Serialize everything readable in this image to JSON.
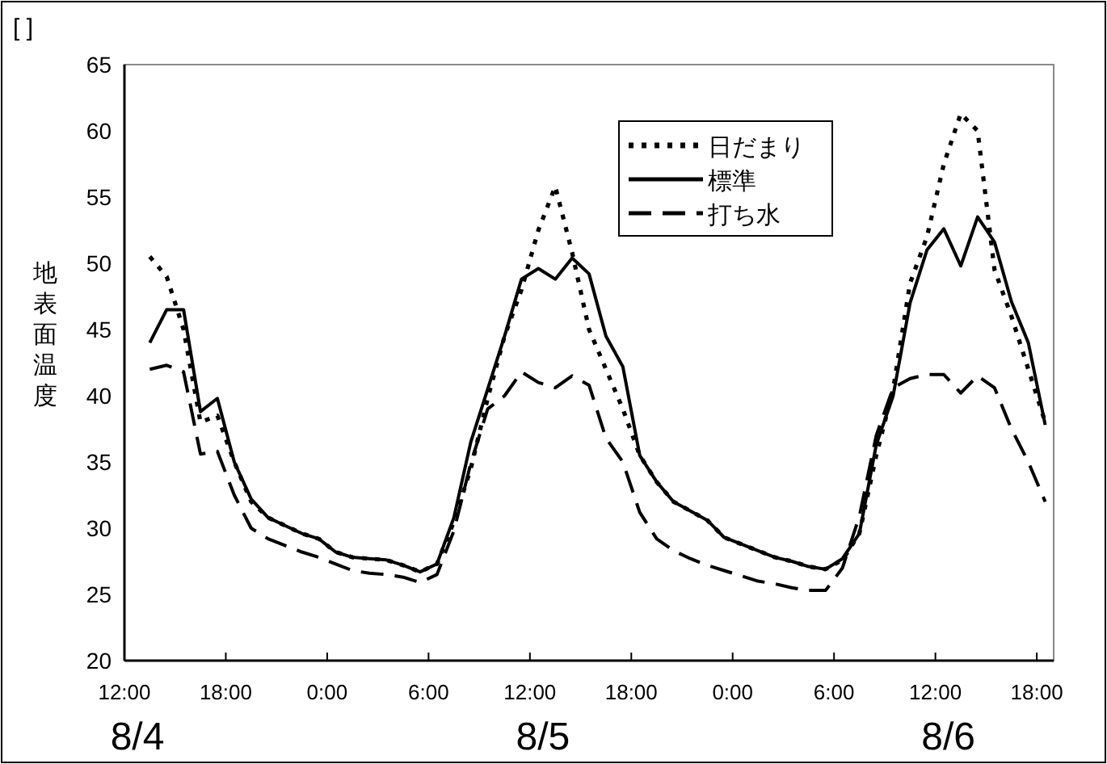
{
  "chart_data": {
    "type": "line",
    "ylabel": "地表面温度",
    "annotations": [
      "[ ]",
      "8/4",
      "8/5",
      "8/6"
    ],
    "x": [
      "--08-04T13:30",
      "--08-04T14:30",
      "--08-04T15:30",
      "--08-04T16:30",
      "--08-04T17:30",
      "--08-04T18:30",
      "--08-04T19:30",
      "--08-04T20:30",
      "--08-04T21:30",
      "--08-04T22:30",
      "--08-04T23:30",
      "--08-05T00:30",
      "--08-05T01:30",
      "--08-05T02:30",
      "--08-05T03:30",
      "--08-05T04:30",
      "--08-05T05:30",
      "--08-05T06:30",
      "--08-05T07:30",
      "--08-05T08:30",
      "--08-05T09:30",
      "--08-05T10:30",
      "--08-05T11:30",
      "--08-05T12:30",
      "--08-05T13:30",
      "--08-05T14:30",
      "--08-05T15:30",
      "--08-05T16:30",
      "--08-05T17:30",
      "--08-05T18:30",
      "--08-05T19:30",
      "--08-05T20:30",
      "--08-05T21:30",
      "--08-05T22:30",
      "--08-05T23:30",
      "--08-06T00:30",
      "--08-06T01:30",
      "--08-06T02:30",
      "--08-06T03:30",
      "--08-06T04:30",
      "--08-06T05:30",
      "--08-06T06:30",
      "--08-06T07:30",
      "--08-06T08:30",
      "--08-06T09:30",
      "--08-06T10:30",
      "--08-06T11:30",
      "--08-06T12:30",
      "--08-06T13:30",
      "--08-06T14:30",
      "--08-06T15:30",
      "--08-06T16:30",
      "--08-06T17:30",
      "--08-06T18:30"
    ],
    "series": [
      {
        "name": "日だまり",
        "color": "#000000",
        "line_style": "dotted",
        "values": [
          50.5,
          49.0,
          45.0,
          38.0,
          38.5,
          35.0,
          32.0,
          30.8,
          30.2,
          29.6,
          29.2,
          28.2,
          27.8,
          27.7,
          27.6,
          27.2,
          26.7,
          27.3,
          30.5,
          34.5,
          39.8,
          44.5,
          48.0,
          52.5,
          55.8,
          50.8,
          45.0,
          42.0,
          39.0,
          35.5,
          33.5,
          32.0,
          31.3,
          30.6,
          29.3,
          28.8,
          28.3,
          27.8,
          27.5,
          27.1,
          26.9,
          27.6,
          29.6,
          35.5,
          40.5,
          48.5,
          52.0,
          57.5,
          61.3,
          60.0,
          49.5,
          46.0,
          42.0,
          38.0
        ]
      },
      {
        "name": "標準",
        "color": "#000000",
        "line_style": "solid",
        "values": [
          44.0,
          46.5,
          46.5,
          38.8,
          39.8,
          35.0,
          32.2,
          30.8,
          30.2,
          29.6,
          29.2,
          28.2,
          27.8,
          27.7,
          27.6,
          27.2,
          26.7,
          27.3,
          30.8,
          36.5,
          40.5,
          44.5,
          48.8,
          49.6,
          48.8,
          50.4,
          49.2,
          44.5,
          42.2,
          35.5,
          33.5,
          32.0,
          31.3,
          30.6,
          29.3,
          28.8,
          28.3,
          27.8,
          27.5,
          27.1,
          26.9,
          27.7,
          29.6,
          36.3,
          40.0,
          47.0,
          51.0,
          52.6,
          49.8,
          53.5,
          51.6,
          47.1,
          44.0,
          37.8
        ]
      },
      {
        "name": "打ち水",
        "color": "#000000",
        "line_style": "dashed",
        "values": [
          42.0,
          42.3,
          41.8,
          35.6,
          35.8,
          32.5,
          30.0,
          29.2,
          28.7,
          28.2,
          27.8,
          27.3,
          26.8,
          26.6,
          26.5,
          26.3,
          25.9,
          26.5,
          29.8,
          34.9,
          39.0,
          40.0,
          41.8,
          41.0,
          40.6,
          41.5,
          40.8,
          36.8,
          35.0,
          31.2,
          29.2,
          28.3,
          27.7,
          27.2,
          26.8,
          26.4,
          26.0,
          25.8,
          25.5,
          25.3,
          25.3,
          27.0,
          30.9,
          37.0,
          40.6,
          41.3,
          41.6,
          41.6,
          40.2,
          41.5,
          40.6,
          37.5,
          35.0,
          32.0
        ]
      }
    ],
    "xlim": [
      "--08-04T12:00",
      "--08-06T19:00"
    ],
    "ylim": [
      20,
      65
    ],
    "xticks": [
      {
        "value": "--08-04T12:00",
        "label": "12:00"
      },
      {
        "value": "--08-04T18:00",
        "label": "18:00"
      },
      {
        "value": "--08-05T00:00",
        "label": "0:00"
      },
      {
        "value": "--08-05T06:00",
        "label": "6:00"
      },
      {
        "value": "--08-05T12:00",
        "label": "12:00"
      },
      {
        "value": "--08-05T18:00",
        "label": "18:00"
      },
      {
        "value": "--08-06T00:00",
        "label": "0:00"
      },
      {
        "value": "--08-06T06:00",
        "label": "6:00"
      },
      {
        "value": "--08-06T12:00",
        "label": "12:00"
      },
      {
        "value": "--08-06T18:00",
        "label": "18:00"
      }
    ],
    "yticks": [
      20,
      25,
      30,
      35,
      40,
      45,
      50,
      55,
      60,
      65
    ],
    "legend": "top",
    "grid": false,
    "marker": "none"
  }
}
